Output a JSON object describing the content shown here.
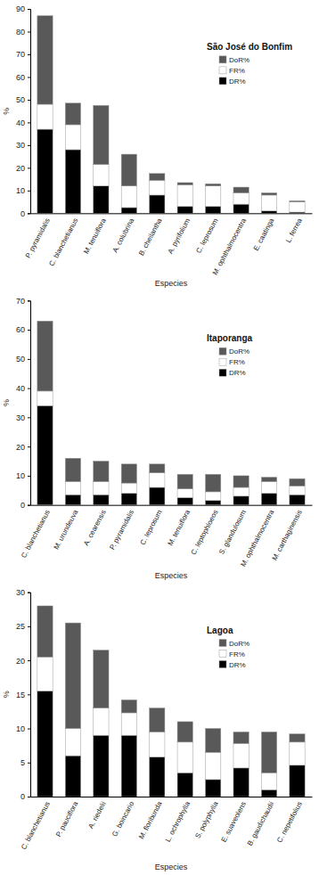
{
  "chart_data": [
    {
      "type": "bar",
      "stacked": true,
      "legend": "right",
      "title": "São José do Bonfim",
      "x_label": "Especies",
      "y_label": "%",
      "categories": [
        "P. pyramidalis",
        "C. blanchetianus",
        "M. tenuiflora",
        "A. colubrina",
        "B. cheilantha",
        "A. pyrifolium",
        "C. leprosum",
        "M. ophthalmocentra",
        "E. caatinga",
        "L. ferrea"
      ],
      "series": [
        {
          "name": "DR%",
          "color": "#000000",
          "values": [
            37,
            28,
            12,
            2.5,
            8,
            3,
            3,
            4,
            1,
            0.5
          ]
        },
        {
          "name": "FR%",
          "color": "#ffffff",
          "values": [
            11,
            11,
            9.5,
            9.5,
            6.5,
            9.5,
            9,
            5,
            7,
            4.5
          ]
        },
        {
          "name": "DoR%",
          "color": "#595959",
          "values": [
            39,
            9.5,
            26,
            14,
            3,
            1,
            1,
            2.5,
            1,
            0.5
          ]
        }
      ],
      "ylim": [
        0,
        90
      ],
      "yticks": [
        0,
        10,
        20,
        30,
        40,
        50,
        60,
        70,
        80,
        90
      ]
    },
    {
      "type": "bar",
      "stacked": true,
      "legend": "right",
      "title": "Itaporanga",
      "x_label": "Especies",
      "y_label": "%",
      "categories": [
        "C. blanchetianus",
        "M. urundeuva",
        "A. cearensis",
        "P. pyramidalis",
        "C. leprosum",
        "M. tenuiflora",
        "C. leptophloeos",
        "S. glandulosum",
        "M. ophthalmocentra",
        "M. carthaginensis"
      ],
      "series": [
        {
          "name": "DR%",
          "color": "#000000",
          "values": [
            34,
            3.5,
            3.5,
            4,
            6,
            2.5,
            1.5,
            3,
            4,
            3.5
          ]
        },
        {
          "name": "FR%",
          "color": "#ffffff",
          "values": [
            5,
            4.5,
            4.5,
            3.5,
            5,
            3,
            3,
            3,
            4,
            3
          ]
        },
        {
          "name": "DoR%",
          "color": "#595959",
          "values": [
            24,
            8,
            7,
            6.5,
            3,
            5,
            6,
            4,
            1.5,
            2.5
          ]
        }
      ],
      "ylim": [
        0,
        70
      ],
      "yticks": [
        0,
        10,
        20,
        30,
        40,
        50,
        60,
        70
      ]
    },
    {
      "type": "bar",
      "stacked": true,
      "legend": "right",
      "title": "Lagoa",
      "x_label": "Especies",
      "y_label": "%",
      "categories": [
        "C. blanchetianus",
        "P. pauciflora",
        "A. riedelii",
        "G. boincario",
        "M. floribunda",
        "L. ochrophylla",
        "S. polyphylla",
        "E. suaveolens",
        "B. gaudichaudii",
        "C. nepetifolius"
      ],
      "series": [
        {
          "name": "DR%",
          "color": "#000000",
          "values": [
            15.5,
            6,
            9,
            9,
            5.8,
            3.5,
            2.5,
            4.2,
            1,
            4.6
          ]
        },
        {
          "name": "FR%",
          "color": "#ffffff",
          "values": [
            5,
            4,
            4,
            3.3,
            3.7,
            4.5,
            4,
            3.6,
            2.5,
            3.4
          ]
        },
        {
          "name": "DoR%",
          "color": "#595959",
          "values": [
            7.5,
            15.5,
            8.5,
            1.9,
            3.5,
            3,
            3.5,
            1.7,
            6,
            1.2
          ]
        }
      ],
      "ylim": [
        0,
        30
      ],
      "yticks": [
        0,
        5,
        10,
        15,
        20,
        25,
        30
      ]
    }
  ]
}
